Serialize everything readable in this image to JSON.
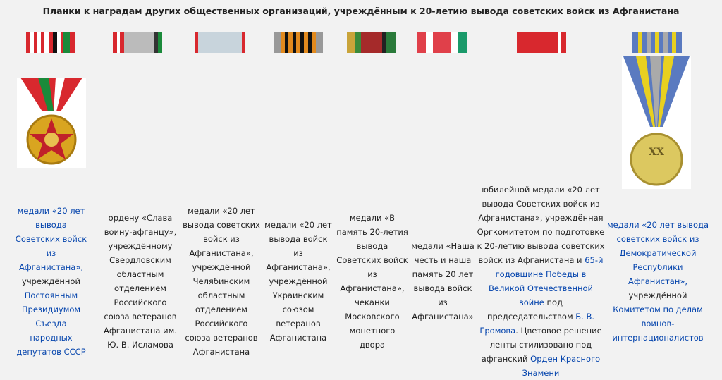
{
  "title": "Планки к наградам других общественных организаций, учреждённым к 20-летию вывода советских войск из Афганистана",
  "columns": [
    {
      "caption": [
        {
          "text": "медали «20 лет вывода Советских войск из Афганистана»,",
          "link": true
        },
        {
          "text": " учреждённой "
        },
        {
          "text": "Постоянным Президиумом Съезда народных депутатов СССР",
          "link": true
        }
      ]
    },
    {
      "caption": [
        {
          "text": "ордену «Слава воину-афганцу», учреждённому Свердловским областным отделением Российского союза ветеранов Афганистана им. Ю. В. Исламова"
        }
      ]
    },
    {
      "caption": [
        {
          "text": "медали «20 лет вывода советских войск из Афганистана», учреждённой Челябинским областным отделением Российского союза ветеранов Афганистана"
        }
      ]
    },
    {
      "caption": [
        {
          "text": "медали «20 лет вывода войск из Афганистана», учреждённой Украинским союзом ветеранов Афганистана"
        }
      ]
    },
    {
      "caption": [
        {
          "text": "медали «В память 20-летия вывода Советских войск из Афганистана», чеканки Московского монетного двора"
        }
      ]
    },
    {
      "caption": [
        {
          "text": "медали «Наша честь и наша память 20 лет вывода войск из Афганистана»"
        }
      ]
    },
    {
      "caption": [
        {
          "text": "юбилейной медали «20 лет вывода Советских войск из Афганистана», учреждённая Оргкомитетом по подготовке к 20-летию вывода советских войск из Афганистана и "
        },
        {
          "text": "65-й годовщине Победы в Великой Отечественной войне",
          "link": true
        },
        {
          "text": " под председательством "
        },
        {
          "text": "Б. В. Громова",
          "link": true
        },
        {
          "text": ". Цветовое решение ленты стилизовано под афганский "
        },
        {
          "text": "Орден Красного Знамени",
          "link": true
        }
      ]
    },
    {
      "caption": [
        {
          "text": "медали «20 лет вывода советских войск из Демократической Республики Афганистан»,",
          "link": true
        },
        {
          "text": " учреждённой "
        },
        {
          "text": "Комитетом по делам воинов-интернационалистов",
          "link": true
        }
      ]
    }
  ]
}
